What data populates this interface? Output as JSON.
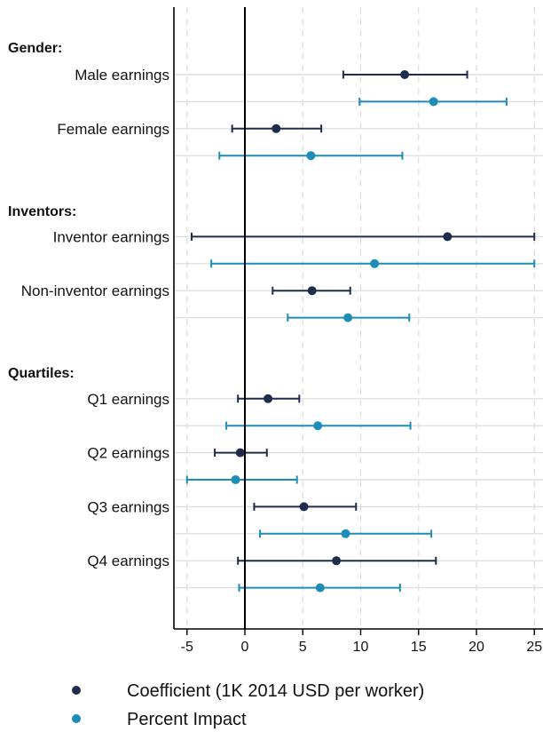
{
  "chart_data": {
    "type": "scatter",
    "title": "",
    "xlabel": "",
    "ylabel": "",
    "xlim": [
      -5,
      25
    ],
    "x_ticks": [
      -5,
      0,
      5,
      10,
      15,
      20,
      25
    ],
    "grid": true,
    "legend_position": "bottom",
    "series": [
      {
        "name": "Coefficient (1K 2014 USD per worker)",
        "color": "#1f2d4d"
      },
      {
        "name": "Percent Impact",
        "color": "#1d8db8"
      }
    ],
    "groups": [
      {
        "header": "Gender:",
        "rows": [
          {
            "label": "Male earnings",
            "series": 0,
            "estimate": 13.8,
            "ci": [
              8.5,
              19.2
            ]
          },
          {
            "label": "",
            "series": 1,
            "estimate": 16.3,
            "ci": [
              9.9,
              22.6
            ]
          },
          {
            "label": "Female earnings",
            "series": 0,
            "estimate": 2.7,
            "ci": [
              -1.1,
              6.6
            ]
          },
          {
            "label": "",
            "series": 1,
            "estimate": 5.7,
            "ci": [
              -2.2,
              13.6
            ]
          }
        ]
      },
      {
        "header": "Inventors:",
        "rows": [
          {
            "label": "Inventor earnings",
            "series": 0,
            "estimate": 17.5,
            "ci": [
              -4.6,
              25.0
            ]
          },
          {
            "label": "",
            "series": 1,
            "estimate": 11.2,
            "ci": [
              -2.9,
              25.0
            ]
          },
          {
            "label": "Non-inventor earnings",
            "series": 0,
            "estimate": 5.8,
            "ci": [
              2.4,
              9.1
            ]
          },
          {
            "label": "",
            "series": 1,
            "estimate": 8.9,
            "ci": [
              3.7,
              14.2
            ]
          }
        ]
      },
      {
        "header": "Quartiles:",
        "rows": [
          {
            "label": "Q1 earnings",
            "series": 0,
            "estimate": 2.0,
            "ci": [
              -0.6,
              4.7
            ]
          },
          {
            "label": "",
            "series": 1,
            "estimate": 6.3,
            "ci": [
              -1.6,
              14.3
            ]
          },
          {
            "label": "Q2 earnings",
            "series": 0,
            "estimate": -0.4,
            "ci": [
              -2.6,
              1.9
            ]
          },
          {
            "label": "",
            "series": 1,
            "estimate": -0.8,
            "ci": [
              -5.0,
              4.5
            ]
          },
          {
            "label": "Q3 earnings",
            "series": 0,
            "estimate": 5.1,
            "ci": [
              0.8,
              9.6
            ]
          },
          {
            "label": "",
            "series": 1,
            "estimate": 8.7,
            "ci": [
              1.3,
              16.1
            ]
          },
          {
            "label": "Q4 earnings",
            "series": 0,
            "estimate": 7.9,
            "ci": [
              -0.6,
              16.5
            ]
          },
          {
            "label": "",
            "series": 1,
            "estimate": 6.5,
            "ci": [
              -0.5,
              13.4
            ]
          }
        ]
      }
    ]
  }
}
